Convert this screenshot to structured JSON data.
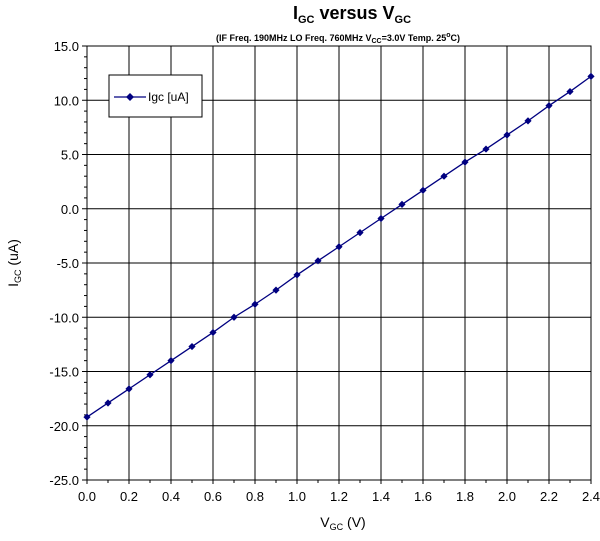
{
  "chart_data": {
    "type": "line",
    "title": {
      "main": "I",
      "main_sub": "GC",
      "mid": " versus V",
      "end_sub": "GC"
    },
    "subtitle": {
      "part1": "(IF Freq. 190MHz LO Freq. 760MHz V",
      "part1_sub": "CC",
      "part2": "=3.0V Temp. 25",
      "part2_sup": "o",
      "part3": "C)"
    },
    "xlabel": {
      "main": "V",
      "sub": "GC",
      "end": " (V)"
    },
    "ylabel": {
      "main": "I",
      "sub": "GC",
      "end": " (uA)"
    },
    "xlim": [
      0.0,
      2.4
    ],
    "ylim": [
      -25.0,
      15.0
    ],
    "x_ticks": [
      "0.0",
      "0.2",
      "0.4",
      "0.6",
      "0.8",
      "1.0",
      "1.2",
      "1.4",
      "1.6",
      "1.8",
      "2.0",
      "2.2",
      "2.4"
    ],
    "y_ticks": [
      "15.0",
      "10.0",
      "5.0",
      "0.0",
      "-5.0",
      "-10.0",
      "-15.0",
      "-20.0",
      "-25.0"
    ],
    "grid": true,
    "legend_position": "top-left",
    "series": [
      {
        "name": "Igc [uA]",
        "color": "#000080",
        "marker": "diamond",
        "x": [
          0.0,
          0.1,
          0.2,
          0.3,
          0.4,
          0.5,
          0.6,
          0.7,
          0.8,
          0.9,
          1.0,
          1.1,
          1.2,
          1.3,
          1.4,
          1.5,
          1.6,
          1.7,
          1.8,
          1.9,
          2.0,
          2.1,
          2.2,
          2.3,
          2.4
        ],
        "y": [
          -19.2,
          -17.9,
          -16.6,
          -15.3,
          -14.0,
          -12.7,
          -11.4,
          -10.0,
          -8.8,
          -7.5,
          -6.1,
          -4.8,
          -3.5,
          -2.2,
          -0.9,
          0.4,
          1.7,
          3.0,
          4.3,
          5.5,
          6.8,
          8.1,
          9.5,
          10.8,
          12.2
        ]
      }
    ]
  }
}
